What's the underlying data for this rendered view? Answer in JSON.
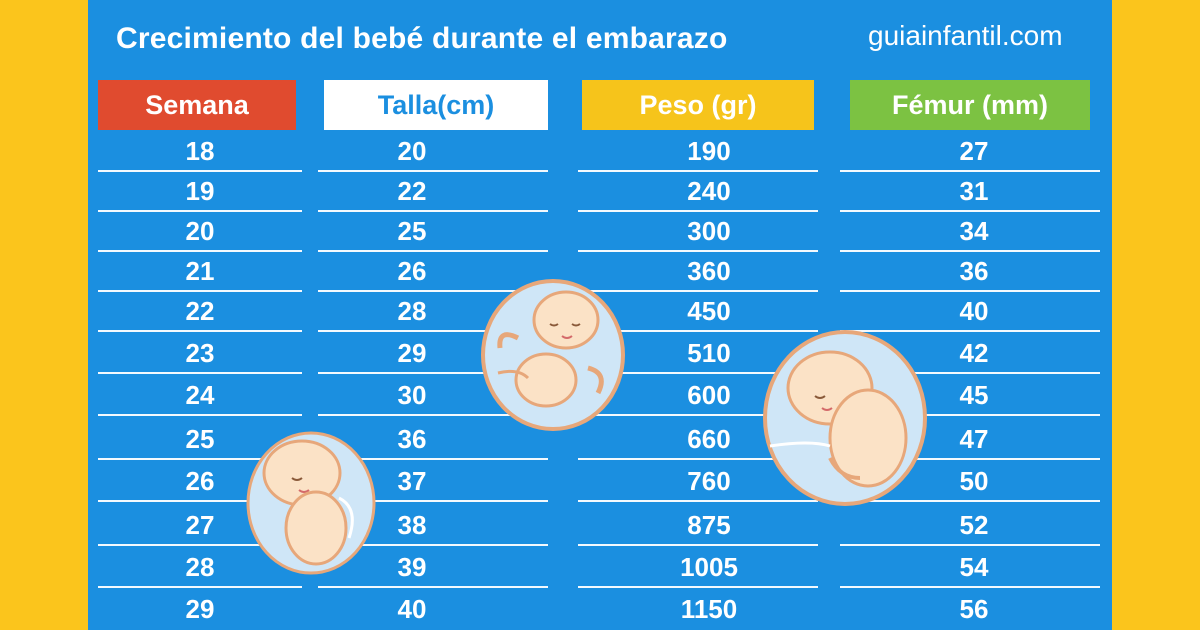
{
  "title": "Crecimiento del bebé durante el embarazo",
  "brand": "guiainfantil.com",
  "headers": {
    "semana": "Semana",
    "talla": "Talla(cm)",
    "peso": "Peso (gr)",
    "femur": "Fémur (mm)"
  },
  "rows": [
    {
      "semana": "18",
      "talla": "20",
      "peso": "190",
      "femur": "27"
    },
    {
      "semana": "19",
      "talla": "22",
      "peso": "240",
      "femur": "31"
    },
    {
      "semana": "20",
      "talla": "25",
      "peso": "300",
      "femur": "34"
    },
    {
      "semana": "21",
      "talla": "26",
      "peso": "360",
      "femur": "36"
    },
    {
      "semana": "22",
      "talla": "28",
      "peso": "450",
      "femur": "40"
    },
    {
      "semana": "23",
      "talla": "29",
      "peso": "510",
      "femur": "42"
    },
    {
      "semana": "24",
      "talla": "30",
      "peso": "600",
      "femur": "45"
    },
    {
      "semana": "25",
      "talla": "36",
      "peso": "660",
      "femur": "47"
    },
    {
      "semana": "26",
      "talla": "37",
      "peso": "760",
      "femur": "50"
    },
    {
      "semana": "27",
      "talla": "38",
      "peso": "875",
      "femur": "52"
    },
    {
      "semana": "28",
      "talla": "39",
      "peso": "1005",
      "femur": "54"
    },
    {
      "semana": "29",
      "talla": "40",
      "peso": "1150",
      "femur": "56"
    }
  ],
  "colors": {
    "background": "#fbc51c",
    "board": "#1b8fe0",
    "semana_header": "#e04b2f",
    "talla_header": "#ffffff",
    "peso_header": "#f6c41b",
    "femur_header": "#7cc242"
  }
}
